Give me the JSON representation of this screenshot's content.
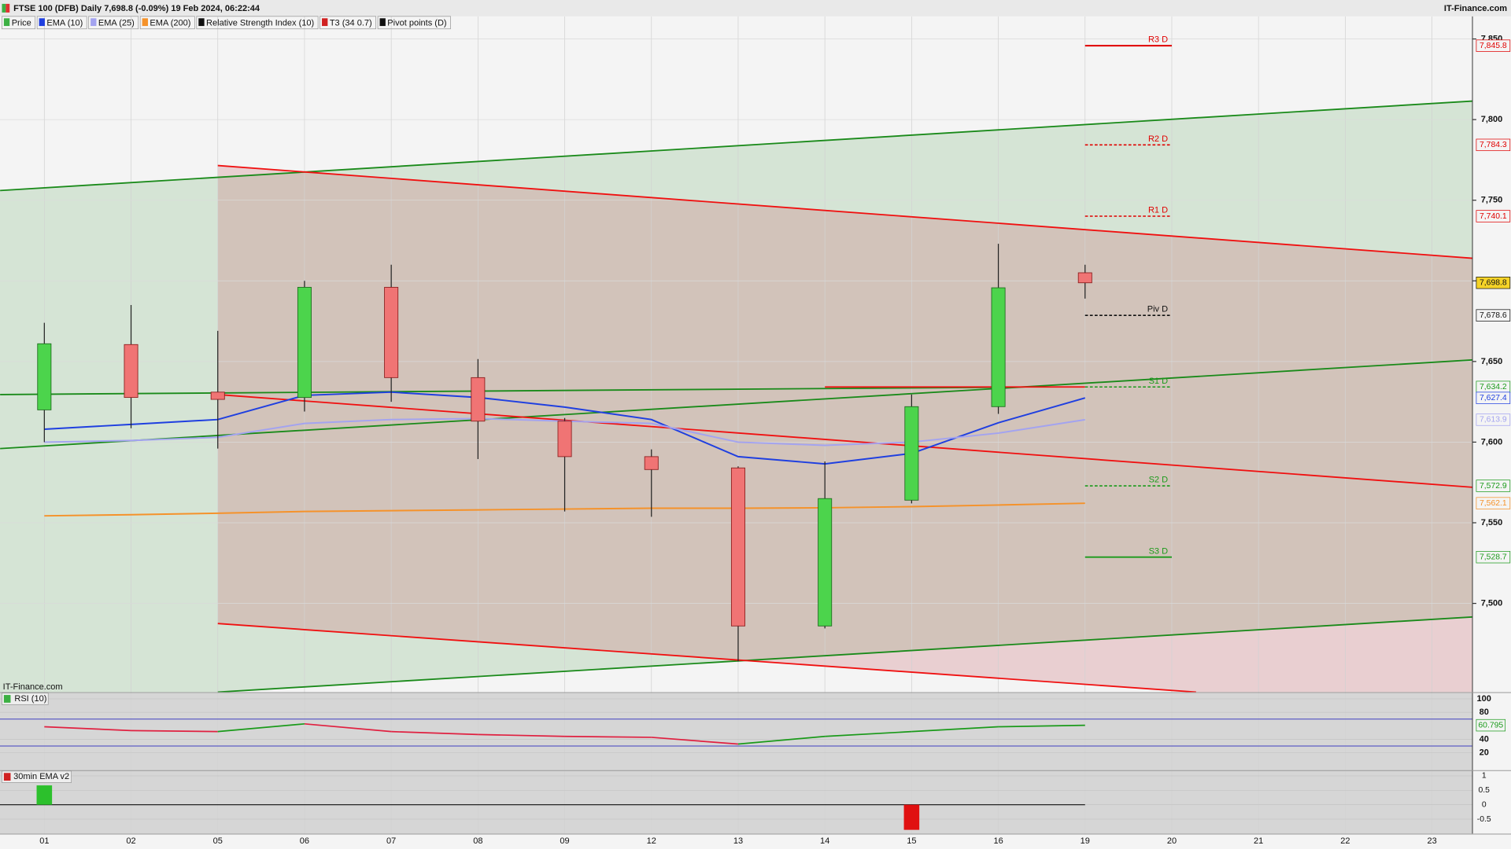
{
  "chart_data": {
    "type": "candlestick",
    "title": "FTSE 100 (DFB) Daily 7,698.8 (-0.09%) 19 Feb 2024, 06:22:44",
    "source": "IT-Finance.com",
    "legend": [
      {
        "name": "Price",
        "color": "#3cb043"
      },
      {
        "name": "Relative Strength Index (10)",
        "color": "#111111"
      },
      {
        "name": "T3 (34 0.7)",
        "color": "#d02020"
      },
      {
        "name": "Pivot points (D)",
        "color": "#111111"
      }
    ],
    "categories": [
      "01",
      "02",
      "05",
      "06",
      "07",
      "08",
      "09",
      "12",
      "13",
      "14",
      "15",
      "16",
      "19",
      "20",
      "21",
      "22",
      "23"
    ],
    "open": [
      7620,
      7660.5,
      7631,
      7627.7,
      7696,
      7640,
      7613,
      7591,
      7584,
      7486,
      7564,
      7622,
      7705,
      null,
      null,
      null,
      null
    ],
    "high": [
      7674,
      7685,
      7669,
      7700,
      7710,
      7651.5,
      7615,
      7595.5,
      7585,
      7588,
      7629.5,
      7723,
      7710,
      null,
      null,
      null,
      null
    ],
    "low": [
      7600,
      7608.6,
      7596,
      7619,
      7625,
      7589.5,
      7557,
      7553.7,
      7464,
      7484.5,
      7562,
      7617.5,
      7689,
      null,
      null,
      null,
      null
    ],
    "close": [
      7661,
      7627.7,
      7626.5,
      7696,
      7640,
      7613,
      7591,
      7583,
      7486,
      7565,
      7622,
      7695.7,
      7698.8,
      null,
      null,
      null,
      null
    ],
    "last_price_label": "7,698.8",
    "up_color": "#4cd44c",
    "down_color": "#f07474",
    "series": [
      {
        "name": "EMA (10)",
        "color": "#1f3fe0",
        "values": [
          7608,
          7611,
          7614,
          7629,
          7631,
          7627.7,
          7621.7,
          7614,
          7591,
          7586.5,
          7593,
          7612,
          7627.4,
          null,
          null,
          null,
          null
        ],
        "last_label": "7,627.4"
      },
      {
        "name": "EMA (25)",
        "color": "#a3a3f0",
        "values": [
          7600,
          7601,
          7603,
          7611.6,
          7614,
          7614.6,
          7613,
          7611.6,
          7600,
          7598,
          7600,
          7605.6,
          7613.9,
          null,
          null,
          null,
          null
        ],
        "last_label": "7,613.9"
      },
      {
        "name": "EMA (200)",
        "color": "#f5922a",
        "values": [
          7554.3,
          7555,
          7555.9,
          7557,
          7557.5,
          7558,
          7558.5,
          7559,
          7559,
          7559.3,
          7560,
          7561,
          7562.1,
          null,
          null,
          null,
          null
        ],
        "last_label": "7,562.1"
      }
    ],
    "ylim": [
      7445,
      7864
    ],
    "yticks": [
      {
        "value": 7500,
        "label": "7,500"
      },
      {
        "value": 7550,
        "label": "7,550"
      },
      {
        "value": 7600,
        "label": "7,600"
      },
      {
        "value": 7650,
        "label": "7,650"
      },
      {
        "value": 7700,
        "label": "7,700"
      },
      {
        "value": 7750,
        "label": "7,750"
      },
      {
        "value": 7800,
        "label": "7,800"
      },
      {
        "value": 7850,
        "label": "7,850"
      }
    ],
    "grid": true,
    "pivots": [
      {
        "name": "R3 D",
        "value": 7845.8,
        "value_label": "7,845.8",
        "color": "#e00000",
        "dash": false
      },
      {
        "name": "R2 D",
        "value": 7784.3,
        "value_label": "7,784.3",
        "color": "#e00000",
        "dash": true
      },
      {
        "name": "R1 D",
        "value": 7740.1,
        "value_label": "7,740.1",
        "color": "#e00000",
        "dash": true
      },
      {
        "name": "Piv D",
        "value": 7678.6,
        "value_label": "7,678.6",
        "color": "#111111",
        "dash": true
      },
      {
        "name": "S1 D",
        "value": 7634.2,
        "value_label": "7,634.2",
        "color": "#1a9a1a",
        "dash": true
      },
      {
        "name": "S2 D",
        "value": 7572.9,
        "value_label": "7,572.9",
        "color": "#1a9a1a",
        "dash": true
      },
      {
        "name": "S3 D",
        "value": 7528.7,
        "value_label": "7,528.7",
        "color": "#1a9a1a",
        "dash": false
      }
    ],
    "trend_lines": [
      {
        "color": "#1a8a1a",
        "x": [
          -0.51,
          16.47
        ],
        "y": [
          7756,
          7811.5
        ]
      },
      {
        "color": "#1a8a1a",
        "x": [
          -0.51,
          11
        ],
        "y": [
          7629.5,
          7634
        ]
      },
      {
        "color": "#1a8a1a",
        "x": [
          -0.51,
          16.47
        ],
        "y": [
          7596,
          7651
        ]
      },
      {
        "color": "#1a8a1a",
        "x": [
          2,
          16.47
        ],
        "y": [
          7445,
          7491.6
        ]
      },
      {
        "color": "#f01010",
        "x": [
          2,
          16.47
        ],
        "y": [
          7771.5,
          7714
        ]
      },
      {
        "color": "#f01010",
        "x": [
          2,
          16.47
        ],
        "y": [
          7629.5,
          7572
        ]
      },
      {
        "color": "#f01010",
        "x": [
          2,
          13.28
        ],
        "y": [
          7487.5,
          7445
        ]
      },
      {
        "color": "#f01010",
        "x": [
          9,
          12
        ],
        "y": [
          7634.2,
          7634.2
        ]
      }
    ],
    "rsi": {
      "title": "RSI (10)",
      "values": [
        58.6,
        52.9,
        51.4,
        62.9,
        51.4,
        47.1,
        44.3,
        42.9,
        32.9,
        44.3,
        51.4,
        58.6,
        60.795,
        null,
        null,
        null,
        null
      ],
      "last_label": "60.795",
      "ylim": [
        -5.7,
        108.6
      ],
      "yticks": [
        20,
        40,
        80,
        100
      ],
      "bands": [
        70,
        30
      ]
    },
    "ema30": {
      "title": "30min EMA v2",
      "values": [
        0.67,
        0,
        0,
        0,
        0,
        0,
        0,
        0,
        0,
        0,
        -0.87,
        0,
        0,
        null,
        null,
        null,
        null
      ],
      "ylim": [
        -1.0,
        1.167
      ],
      "yticks": [
        {
          "value": 1,
          "label": "1"
        },
        {
          "value": 0.5,
          "label": "0.5"
        },
        0,
        {
          "value": -0.5,
          "label": "-0.5"
        }
      ]
    }
  }
}
